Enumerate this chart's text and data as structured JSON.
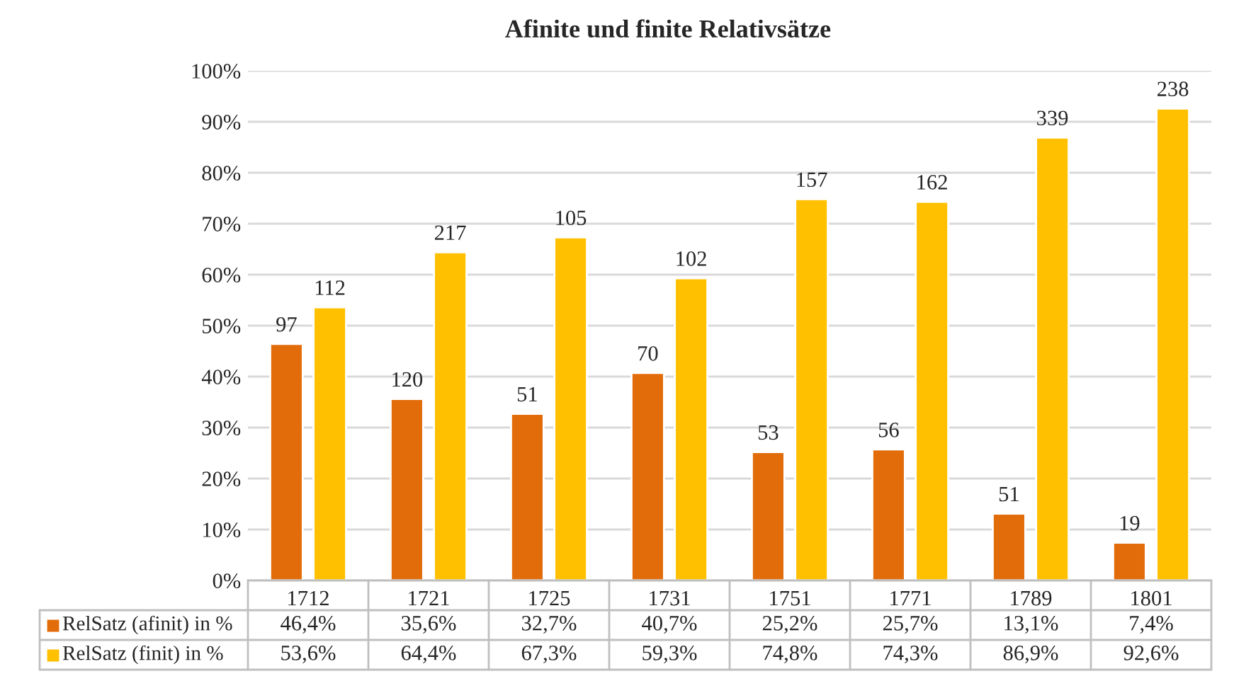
{
  "chart_data": {
    "type": "bar",
    "title": "Afinite und finite Relativsätze",
    "categories": [
      "1712",
      "1721",
      "1725",
      "1731",
      "1751",
      "1771",
      "1789",
      "1801"
    ],
    "series": [
      {
        "name": "RelSatz (afinit) in %",
        "color": "#e36c0a",
        "values": [
          46.4,
          35.6,
          32.7,
          40.7,
          25.2,
          25.7,
          13.1,
          7.4
        ],
        "value_labels": [
          "46,4%",
          "35,6%",
          "32,7%",
          "40,7%",
          "25,2%",
          "25,7%",
          "13,1%",
          "7,4%"
        ]
      },
      {
        "name": "RelSatz (finit) in %",
        "color": "#ffc000",
        "values": [
          53.6,
          64.4,
          67.3,
          59.3,
          74.8,
          74.3,
          86.9,
          92.6
        ],
        "value_labels": [
          "53,6%",
          "64,4%",
          "67,3%",
          "59,3%",
          "74,8%",
          "74,3%",
          "86,9%",
          "92,6%"
        ]
      }
    ],
    "ylim": [
      0,
      100
    ],
    "yticks": [
      {
        "value": 0,
        "label": "0%"
      },
      {
        "value": 10,
        "label": "10%"
      },
      {
        "value": 20,
        "label": "20%"
      },
      {
        "value": 30,
        "label": "30%"
      },
      {
        "value": 40,
        "label": "40%"
      },
      {
        "value": 50,
        "label": "50%"
      },
      {
        "value": 60,
        "label": "60%"
      },
      {
        "value": 70,
        "label": "70%"
      },
      {
        "value": 80,
        "label": "80%"
      },
      {
        "value": 90,
        "label": "90%"
      },
      {
        "value": 100,
        "label": "100%"
      }
    ],
    "grid": "y",
    "legend": "bottom",
    "annotations": [
      {
        "text": "97",
        "x": "1712",
        "y": 46.4
      },
      {
        "text": "120",
        "x": "1721",
        "y": 35.6
      },
      {
        "text": "51",
        "x": "1725",
        "y": 32.7
      },
      {
        "text": "70",
        "x": "1731",
        "y": 40.7
      },
      {
        "text": "53",
        "x": "1751",
        "y": 25.2
      },
      {
        "text": "56",
        "x": "1771",
        "y": 25.7
      },
      {
        "text": "51",
        "x": "1789",
        "y": 13.1
      },
      {
        "text": "19",
        "x": "1801",
        "y": 7.4
      },
      {
        "text": "112",
        "x": "1712",
        "y": 53.6
      },
      {
        "text": "217",
        "x": "1721",
        "y": 64.4
      },
      {
        "text": "105",
        "x": "1725",
        "y": 67.3
      },
      {
        "text": "102",
        "x": "1731",
        "y": 59.3
      },
      {
        "text": "157",
        "x": "1751",
        "y": 74.8
      },
      {
        "text": "162",
        "x": "1771",
        "y": 74.3
      },
      {
        "text": "339",
        "x": "1789",
        "y": 86.9
      },
      {
        "text": "238",
        "x": "1801",
        "y": 92.6
      }
    ]
  }
}
